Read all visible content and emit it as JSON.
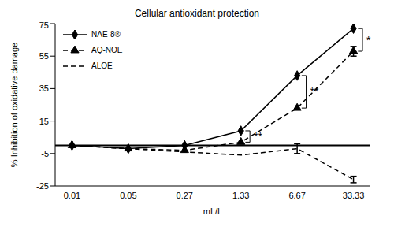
{
  "chart_data": {
    "type": "line",
    "title": "Cellular antioxidant protection",
    "x_label": "mL/L",
    "y_label": "% Inhibition of oxidative damage",
    "categories": [
      "0.01",
      "0.05",
      "0.27",
      "1.33",
      "6.67",
      "33.33"
    ],
    "series": [
      {
        "name": "NAE-8®",
        "color": "#000000",
        "marker": "diamond",
        "line_style": "solid",
        "values": [
          0,
          -2,
          0,
          9,
          43,
          72
        ]
      },
      {
        "name": "AQ-NOE",
        "color": "#000000",
        "marker": "triangle",
        "line_style": "dashed",
        "values": [
          0,
          -2,
          -3,
          2,
          23,
          58
        ],
        "error": [
          0,
          0,
          0,
          0,
          0,
          3
        ]
      },
      {
        "name": "ALOE",
        "color": "#000000",
        "marker": "none",
        "line_style": "dashed",
        "values": [
          0,
          -2,
          -4,
          -6,
          -2,
          -21
        ],
        "error": [
          0,
          0,
          0,
          0,
          3,
          2
        ]
      }
    ],
    "ylim": [
      -25,
      75
    ],
    "yticks": [
      -25,
      -5,
      15,
      35,
      55,
      75
    ],
    "baseline": 0,
    "legend": "upper left",
    "annotations": [
      {
        "text": "**",
        "category": "1.33",
        "between": [
          "NAE-8®",
          "AQ-NOE"
        ]
      },
      {
        "text": "**",
        "category": "6.67",
        "between": [
          "NAE-8®",
          "AQ-NOE"
        ]
      },
      {
        "text": "*",
        "category": "33.33",
        "between": [
          "NAE-8®",
          "AQ-NOE"
        ]
      }
    ]
  }
}
